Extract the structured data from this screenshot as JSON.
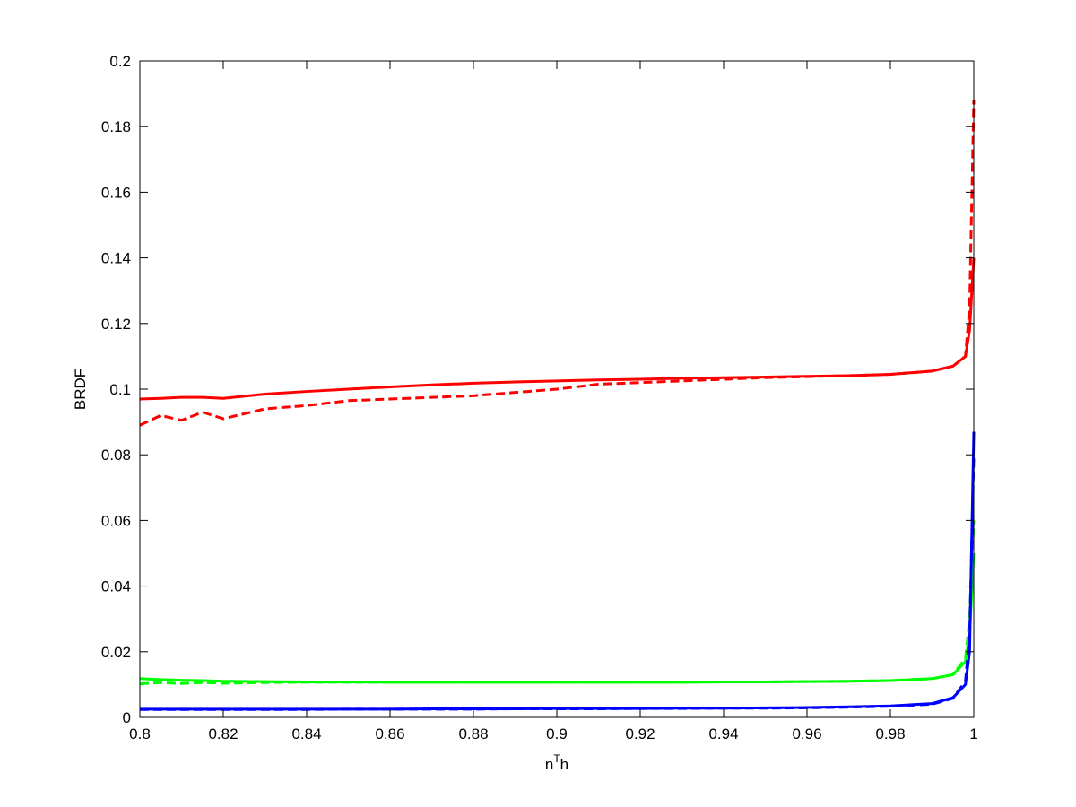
{
  "chart_data": {
    "type": "line",
    "ylabel": "BRDF",
    "xlabel": [
      "n",
      "T",
      "h"
    ],
    "x": [
      0.8,
      0.805,
      0.81,
      0.815,
      0.82,
      0.83,
      0.84,
      0.85,
      0.86,
      0.87,
      0.88,
      0.89,
      0.9,
      0.91,
      0.92,
      0.93,
      0.94,
      0.95,
      0.96,
      0.97,
      0.98,
      0.99,
      0.995,
      0.998,
      0.999,
      1.0
    ],
    "series": [
      {
        "color": "#ff0000",
        "dash": false,
        "values": [
          0.097,
          0.0972,
          0.0975,
          0.0975,
          0.0972,
          0.0985,
          0.0993,
          0.1,
          0.1007,
          0.1013,
          0.1018,
          0.1022,
          0.1025,
          0.1028,
          0.103,
          0.1033,
          0.1035,
          0.1037,
          0.1039,
          0.1041,
          0.1045,
          0.1055,
          0.107,
          0.11,
          0.118,
          0.14
        ]
      },
      {
        "color": "#ff0000",
        "dash": true,
        "values": [
          0.089,
          0.092,
          0.0905,
          0.093,
          0.091,
          0.094,
          0.095,
          0.0965,
          0.097,
          0.0975,
          0.098,
          0.099,
          0.1,
          0.1015,
          0.102,
          0.1025,
          0.103,
          0.1035,
          0.1038,
          0.1041,
          0.1045,
          0.1055,
          0.107,
          0.11,
          0.125,
          0.188
        ]
      },
      {
        "color": "#00ff00",
        "dash": false,
        "values": [
          0.0118,
          0.0115,
          0.0113,
          0.0112,
          0.011,
          0.0109,
          0.0108,
          0.0108,
          0.0107,
          0.0107,
          0.0107,
          0.0107,
          0.0107,
          0.0107,
          0.0107,
          0.0107,
          0.0108,
          0.0108,
          0.0109,
          0.011,
          0.0112,
          0.0118,
          0.013,
          0.017,
          0.025,
          0.05
        ]
      },
      {
        "color": "#00ff00",
        "dash": true,
        "values": [
          0.0102,
          0.0106,
          0.0103,
          0.0106,
          0.0104,
          0.0106,
          0.0107,
          0.0107,
          0.0107,
          0.0107,
          0.0107,
          0.0107,
          0.0107,
          0.0107,
          0.0107,
          0.0107,
          0.0108,
          0.0108,
          0.0109,
          0.011,
          0.0112,
          0.0118,
          0.013,
          0.018,
          0.03,
          0.06
        ]
      },
      {
        "color": "#0000ff",
        "dash": false,
        "values": [
          0.0025,
          0.0025,
          0.0025,
          0.0025,
          0.0025,
          0.0025,
          0.0025,
          0.0025,
          0.0025,
          0.0026,
          0.0026,
          0.0026,
          0.0027,
          0.0027,
          0.0027,
          0.0028,
          0.0028,
          0.0029,
          0.003,
          0.0032,
          0.0035,
          0.0042,
          0.006,
          0.01,
          0.02,
          0.087
        ]
      },
      {
        "color": "#0000ff",
        "dash": true,
        "values": [
          0.0024,
          0.0024,
          0.0024,
          0.0024,
          0.0024,
          0.0024,
          0.0024,
          0.0025,
          0.0025,
          0.0025,
          0.0025,
          0.0026,
          0.0026,
          0.0026,
          0.0027,
          0.0027,
          0.0028,
          0.0028,
          0.0029,
          0.0031,
          0.0034,
          0.004,
          0.0058,
          0.011,
          0.025,
          0.08
        ]
      }
    ],
    "xlim": [
      0.8,
      1
    ],
    "xticks": [
      0.8,
      0.82,
      0.84,
      0.86,
      0.88,
      0.9,
      0.92,
      0.94,
      0.96,
      0.98,
      1
    ],
    "ylim": [
      0,
      0.2
    ],
    "yticks": [
      0,
      0.02,
      0.04,
      0.06,
      0.08,
      0.1,
      0.12,
      0.14,
      0.16,
      0.18,
      0.2
    ],
    "grid": false
  }
}
